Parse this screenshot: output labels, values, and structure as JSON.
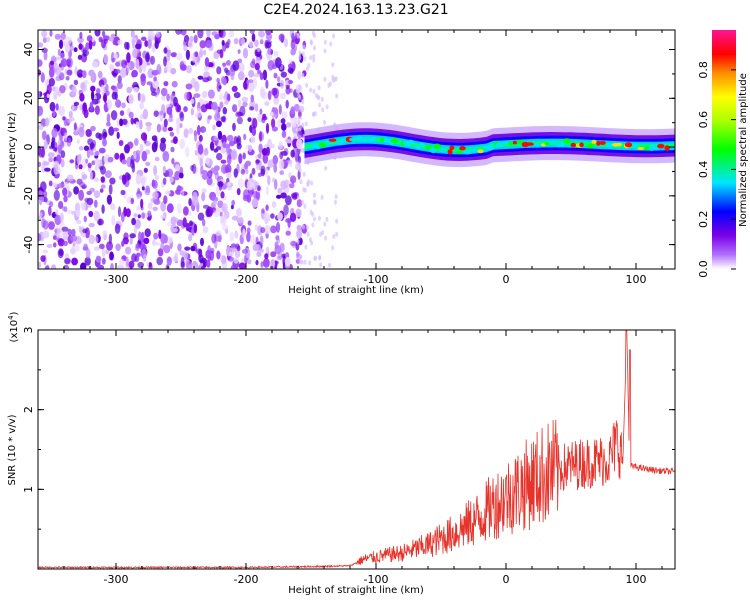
{
  "title": "C2E4.2024.163.13.23.G21",
  "chart_data": [
    {
      "type": "heatmap",
      "xlabel": "Height of straight line (km)",
      "ylabel": "Frequency (Hz)",
      "xlim": [
        -360,
        130
      ],
      "ylim": [
        -50,
        48
      ],
      "x_ticks": [
        -300,
        -200,
        -100,
        0,
        100
      ],
      "x_tick_labels": [
        "-300",
        "-200",
        "-100",
        "0",
        "100"
      ],
      "y_ticks": [
        -40,
        -20,
        0,
        20,
        40
      ],
      "y_tick_labels": [
        "-40",
        "-20",
        "0",
        "20",
        "40"
      ],
      "colorbar": {
        "label": "Normalized spectral amplitude",
        "range": [
          0,
          0.96
        ],
        "ticks": [
          0,
          0.2,
          0.4,
          0.6,
          0.8
        ],
        "tick_labels": [
          "0.0",
          "0.2",
          "0.4",
          "0.6",
          "0.8"
        ],
        "colors": [
          "#ffffff",
          "#7a00e6",
          "#0000ff",
          "#00e5ff",
          "#00ff00",
          "#ffff00",
          "#ff0000",
          "#ff1493"
        ]
      },
      "regions": [
        {
          "x_range": [
            -360,
            -155
          ],
          "y_range": [
            -50,
            48
          ],
          "amplitude": "scattered 0.05-0.2"
        },
        {
          "x_range": [
            -155,
            130
          ],
          "y_range": [
            -5,
            8
          ],
          "amplitude": "band 0.3-0.9 centered near 1 Hz"
        }
      ],
      "grid": false
    },
    {
      "type": "line",
      "xlabel": "Height of straight line (km)",
      "ylabel": "SNR (10 * v/v)",
      "y_scale_label": "(x10",
      "y_scale_exponent": "4",
      "xlim": [
        -360,
        130
      ],
      "ylim": [
        0,
        3
      ],
      "x_ticks": [
        -300,
        -200,
        -100,
        0,
        100
      ],
      "x_tick_labels": [
        "-300",
        "-200",
        "-100",
        "0",
        "100"
      ],
      "y_ticks": [
        1,
        2,
        3
      ],
      "y_tick_labels": [
        "1",
        "2",
        "3"
      ],
      "color": "#e8332b",
      "x": [
        -360,
        -300,
        -250,
        -200,
        -150,
        -120,
        -110,
        -100,
        -90,
        -80,
        -70,
        -60,
        -50,
        -40,
        -30,
        -20,
        -10,
        0,
        10,
        20,
        30,
        40,
        50,
        60,
        70,
        80,
        85,
        90,
        93,
        95,
        100,
        110,
        120,
        130
      ],
      "y": [
        0.02,
        0.02,
        0.02,
        0.02,
        0.03,
        0.04,
        0.12,
        0.15,
        0.18,
        0.2,
        0.25,
        0.3,
        0.38,
        0.45,
        0.55,
        0.65,
        0.8,
        0.9,
        1.0,
        1.1,
        1.2,
        1.25,
        1.3,
        1.33,
        1.35,
        1.38,
        1.6,
        1.4,
        3.0,
        1.3,
        1.28,
        1.25,
        1.23,
        1.22
      ],
      "grid": false
    }
  ]
}
